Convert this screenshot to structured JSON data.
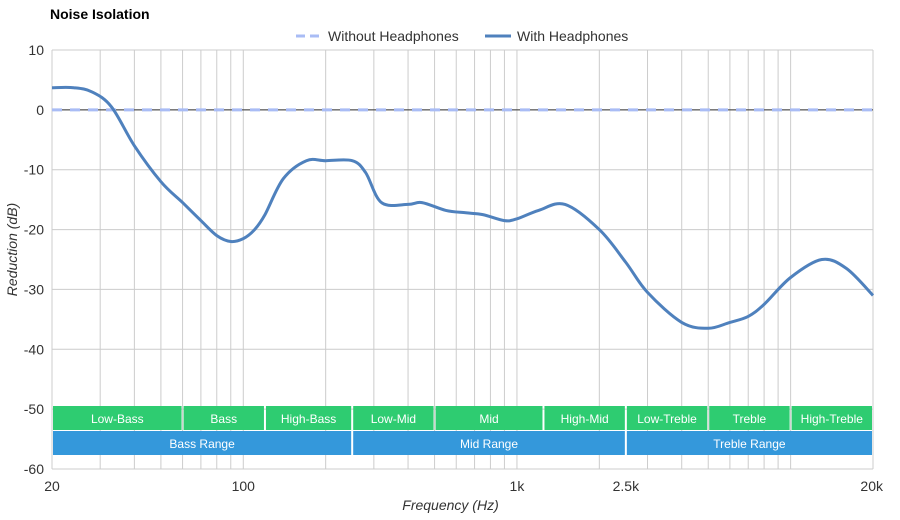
{
  "colors": {
    "background": "#ffffff",
    "grid": "#cccccc",
    "zero_line": "#333333",
    "without_series": "#a9bcf5",
    "with_series": "#4f81bd",
    "band_green": "#2ecc71",
    "band_blue": "#3498db",
    "text": "#333333"
  },
  "chart_data": {
    "type": "line",
    "title": "Noise Isolation",
    "xlabel": "Frequency (Hz)",
    "ylabel": "Reduction (dB)",
    "x_scale": "log",
    "xlim": [
      20,
      20000
    ],
    "ylim": [
      -60,
      10
    ],
    "grid": true,
    "legend_position": "top-center",
    "y_ticks": [
      10,
      0,
      -10,
      -20,
      -30,
      -40,
      -50,
      -60
    ],
    "x_ticks": [
      {
        "value": 20,
        "label": "20"
      },
      {
        "value": 100,
        "label": "100"
      },
      {
        "value": 1000,
        "label": "1k"
      },
      {
        "value": 2500,
        "label": "2.5k"
      },
      {
        "value": 20000,
        "label": "20k"
      }
    ],
    "x_gridlines": [
      20,
      30,
      40,
      50,
      60,
      70,
      80,
      90,
      100,
      200,
      300,
      400,
      500,
      600,
      700,
      800,
      900,
      1000,
      2000,
      3000,
      4000,
      5000,
      6000,
      7000,
      8000,
      9000,
      10000,
      20000
    ],
    "series": [
      {
        "name": "Without Headphones",
        "style": "dashed",
        "x": [
          20,
          20000
        ],
        "y": [
          0,
          0
        ]
      },
      {
        "name": "With Headphones",
        "style": "solid",
        "x": [
          20,
          24,
          28,
          33,
          40,
          50,
          60,
          70,
          80,
          90,
          100,
          110,
          120,
          140,
          170,
          200,
          250,
          280,
          320,
          400,
          450,
          550,
          650,
          750,
          900,
          1000,
          1200,
          1500,
          2000,
          2500,
          3000,
          4000,
          5000,
          6000,
          7000,
          8000,
          10000,
          13000,
          16000,
          20000
        ],
        "y": [
          3.7,
          3.7,
          3.0,
          0.5,
          -6,
          -12,
          -15.5,
          -18.5,
          -21,
          -22,
          -21.5,
          -20,
          -17.5,
          -11.5,
          -8.5,
          -8.5,
          -8.5,
          -10.5,
          -15.5,
          -15.8,
          -15.5,
          -16.8,
          -17.2,
          -17.5,
          -18.5,
          -18.2,
          -16.8,
          -15.8,
          -20,
          -25.5,
          -30.5,
          -35.5,
          -36.5,
          -35.5,
          -34.5,
          -32.5,
          -28,
          -25,
          -26.5,
          -31
        ]
      }
    ],
    "bands": [
      {
        "row": "detail",
        "label": "Low-Bass",
        "from": 20,
        "to": 60
      },
      {
        "row": "detail",
        "label": "Bass",
        "from": 60,
        "to": 120
      },
      {
        "row": "detail",
        "label": "High-Bass",
        "from": 120,
        "to": 250
      },
      {
        "row": "detail",
        "label": "Low-Mid",
        "from": 250,
        "to": 500
      },
      {
        "row": "detail",
        "label": "Mid",
        "from": 500,
        "to": 1250
      },
      {
        "row": "detail",
        "label": "High-Mid",
        "from": 1250,
        "to": 2500
      },
      {
        "row": "detail",
        "label": "Low-Treble",
        "from": 2500,
        "to": 5000
      },
      {
        "row": "detail",
        "label": "Treble",
        "from": 5000,
        "to": 10000
      },
      {
        "row": "detail",
        "label": "High-Treble",
        "from": 10000,
        "to": 20000
      },
      {
        "row": "range",
        "label": "Bass Range",
        "from": 20,
        "to": 250
      },
      {
        "row": "range",
        "label": "Mid Range",
        "from": 250,
        "to": 2500
      },
      {
        "row": "range",
        "label": "Treble Range",
        "from": 2500,
        "to": 20000
      }
    ]
  }
}
